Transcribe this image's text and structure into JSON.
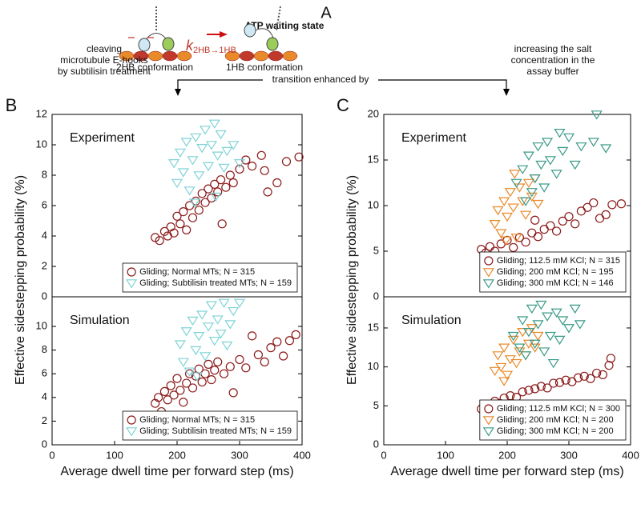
{
  "diagram": {
    "label": "A",
    "state": "ATP waiting state",
    "k": "k",
    "k_sub": "2HB→1HB",
    "left_conf": "2HB conformation",
    "right_conf": "1HB conformation",
    "left_text": [
      "cleaving",
      "microtubule E-hooks",
      "by subtilisin treatment"
    ],
    "right_text": [
      "increasing the salt",
      "concentration in the",
      "assay buffer"
    ],
    "middle_text": "transition enhanced by",
    "panel_b": "B",
    "panel_c": "C"
  },
  "chart_data": [
    {
      "type": "scatter",
      "annotation": "Experiment",
      "ylabel": "Effective sidestepping probability (%)",
      "xlim": [
        0,
        400
      ],
      "ylim": [
        0,
        12
      ],
      "yticks": [
        0,
        2,
        4,
        6,
        8,
        10,
        12
      ],
      "legend": "lower right",
      "series": [
        {
          "name": "Gliding; Normal MTs; N = 315",
          "color": "#8b1a1a",
          "marker": "o",
          "x": [
            165,
            172,
            180,
            185,
            190,
            195,
            200,
            205,
            210,
            215,
            220,
            225,
            230,
            235,
            240,
            245,
            250,
            255,
            260,
            265,
            270,
            278,
            285,
            290,
            300,
            310,
            320,
            335,
            345,
            360,
            375,
            395,
            340,
            272
          ],
          "values": [
            3.9,
            3.7,
            4.3,
            4.0,
            4.6,
            4.2,
            5.3,
            4.8,
            5.6,
            4.4,
            6.0,
            5.2,
            6.3,
            5.7,
            6.8,
            6.2,
            7.1,
            6.5,
            7.4,
            6.9,
            7.7,
            7.2,
            8.0,
            7.5,
            8.4,
            9.0,
            8.6,
            9.3,
            6.9,
            7.5,
            8.9,
            9.2,
            8.3,
            4.8
          ]
        },
        {
          "name": "Gliding; Subtilisin treated MTs; N = 159",
          "color": "#7fd3d6",
          "marker": "v",
          "x": [
            195,
            200,
            205,
            210,
            215,
            220,
            225,
            230,
            235,
            240,
            245,
            250,
            255,
            260,
            265,
            270,
            275,
            280,
            290,
            300,
            228,
            262
          ],
          "values": [
            8.8,
            7.5,
            9.5,
            8.2,
            10.2,
            7.0,
            9.0,
            10.5,
            8.0,
            9.8,
            11.0,
            8.6,
            10.0,
            11.4,
            9.3,
            10.7,
            8.5,
            9.6,
            10.0,
            8.8,
            6.2,
            6.6
          ]
        }
      ]
    },
    {
      "type": "scatter",
      "annotation": "Simulation",
      "xlabel": "Average dwell time per forward step (ms)",
      "xlim": [
        0,
        400
      ],
      "ylim": [
        0,
        12.5
      ],
      "xticks": [
        0,
        100,
        200,
        300,
        400
      ],
      "yticks": [
        0,
        2,
        4,
        6,
        8,
        10
      ],
      "legend": "lower right",
      "series": [
        {
          "name": "Gliding; Normal MTs; N = 315",
          "color": "#8b1a1a",
          "marker": "o",
          "x": [
            165,
            170,
            175,
            180,
            185,
            190,
            195,
            200,
            205,
            210,
            215,
            220,
            225,
            230,
            235,
            240,
            245,
            250,
            255,
            260,
            265,
            275,
            285,
            290,
            300,
            310,
            320,
            330,
            340,
            350,
            360,
            370,
            380,
            390
          ],
          "values": [
            3.5,
            4.0,
            2.8,
            4.5,
            3.8,
            5.0,
            4.2,
            5.6,
            4.6,
            3.6,
            5.2,
            6.0,
            4.8,
            5.8,
            6.4,
            5.3,
            6.0,
            6.8,
            5.5,
            6.3,
            7.0,
            6.0,
            6.6,
            4.4,
            7.2,
            6.5,
            9.2,
            7.6,
            7.0,
            8.2,
            8.7,
            7.5,
            8.8,
            9.3
          ]
        },
        {
          "name": "Gliding; Subtilisin treated MTs; N = 159",
          "color": "#7fd3d6",
          "marker": "v",
          "x": [
            205,
            210,
            215,
            220,
            225,
            230,
            235,
            240,
            245,
            250,
            255,
            260,
            265,
            270,
            275,
            280,
            285,
            290,
            300,
            232
          ],
          "values": [
            8.5,
            7.0,
            9.6,
            6.2,
            10.5,
            8.0,
            9.2,
            11.0,
            7.5,
            10.0,
            11.8,
            8.8,
            10.6,
            9.4,
            12.0,
            8.4,
            10.2,
            11.3,
            12.0,
            5.8
          ]
        }
      ]
    },
    {
      "type": "scatter",
      "annotation": "Experiment",
      "ylabel": "Effective sidestepping probability (%)",
      "xlim": [
        0,
        400
      ],
      "ylim": [
        0,
        20
      ],
      "yticks": [
        0,
        5,
        10,
        15,
        20
      ],
      "legend": "lower right",
      "series": [
        {
          "name": "Gliding; 112.5 mM KCl; N = 315",
          "color": "#8b1a1a",
          "marker": "o",
          "x": [
            158,
            165,
            172,
            180,
            190,
            200,
            210,
            220,
            230,
            240,
            250,
            260,
            270,
            280,
            290,
            300,
            310,
            320,
            330,
            340,
            350,
            360,
            370,
            385,
            245
          ],
          "values": [
            5.2,
            4.8,
            5.5,
            5.0,
            5.8,
            6.2,
            5.4,
            6.5,
            6.0,
            7.0,
            6.6,
            7.4,
            7.8,
            7.2,
            8.3,
            8.8,
            8.0,
            9.4,
            9.8,
            10.3,
            8.6,
            9.0,
            10.1,
            10.2,
            8.4
          ]
        },
        {
          "name": "Gliding; 200 mM KCl; N = 195",
          "color": "#e8892a",
          "marker": "v",
          "x": [
            180,
            185,
            190,
            195,
            200,
            205,
            210,
            215,
            220,
            225,
            230,
            235,
            240,
            245,
            250,
            212,
            198
          ],
          "values": [
            8.0,
            9.5,
            7.0,
            10.5,
            8.8,
            11.5,
            9.8,
            6.5,
            12.0,
            10.5,
            9.0,
            12.5,
            11.0,
            13.0,
            10.2,
            13.5,
            6.2
          ]
        },
        {
          "name": "Gliding; 300 mM KCl; N = 146",
          "color": "#3a9a88",
          "marker": "v",
          "x": [
            215,
            225,
            235,
            240,
            245,
            250,
            255,
            260,
            265,
            270,
            280,
            285,
            290,
            300,
            310,
            320,
            340,
            345,
            360,
            230
          ],
          "values": [
            12.5,
            14.0,
            15.5,
            11.5,
            13.0,
            16.5,
            14.5,
            12.0,
            17.0,
            15.0,
            13.5,
            18.0,
            16.0,
            17.5,
            14.5,
            16.5,
            17.0,
            20.0,
            16.3,
            10.5
          ]
        }
      ]
    },
    {
      "type": "scatter",
      "annotation": "Simulation",
      "xlabel": "Average dwell time per forward step (ms)",
      "xlim": [
        0,
        400
      ],
      "ylim": [
        0,
        19
      ],
      "xticks": [
        0,
        100,
        200,
        300,
        400
      ],
      "yticks": [
        0,
        5,
        10,
        15
      ],
      "legend": "lower right",
      "series": [
        {
          "name": "Gliding; 112.5 mM KCl; N = 300",
          "color": "#8b1a1a",
          "marker": "o",
          "x": [
            158,
            165,
            172,
            180,
            188,
            195,
            205,
            215,
            225,
            235,
            245,
            255,
            265,
            275,
            285,
            295,
            305,
            315,
            325,
            335,
            345,
            355,
            365,
            368,
            200
          ],
          "values": [
            4.6,
            5.2,
            4.9,
            5.6,
            5.3,
            6.0,
            6.3,
            6.1,
            6.8,
            7.0,
            7.2,
            7.5,
            7.3,
            7.9,
            8.0,
            8.3,
            8.1,
            8.6,
            8.8,
            8.5,
            9.2,
            9.0,
            10.2,
            11.1,
            4.9
          ]
        },
        {
          "name": "Gliding; 200 mM KCl; N = 200",
          "color": "#e8892a",
          "marker": "v",
          "x": [
            180,
            185,
            190,
            195,
            200,
            205,
            210,
            215,
            220,
            225,
            230,
            235,
            240,
            245,
            250,
            195
          ],
          "values": [
            9.5,
            11.5,
            10.0,
            12.5,
            9.0,
            11.0,
            13.5,
            10.5,
            12.0,
            14.5,
            11.5,
            13.0,
            15.0,
            12.5,
            14.0,
            8.2
          ]
        },
        {
          "name": "Gliding; 300 mM KCl; N = 200",
          "color": "#3a9a88",
          "marker": "v",
          "x": [
            210,
            220,
            225,
            230,
            235,
            240,
            245,
            250,
            255,
            260,
            265,
            270,
            280,
            285,
            290,
            300,
            310,
            318,
            275
          ],
          "values": [
            14.0,
            12.5,
            16.0,
            11.5,
            14.5,
            17.5,
            13.0,
            15.5,
            18.0,
            12.0,
            16.5,
            14.0,
            17.0,
            13.5,
            16.0,
            15.0,
            17.5,
            15.5,
            10.5
          ]
        }
      ]
    }
  ]
}
